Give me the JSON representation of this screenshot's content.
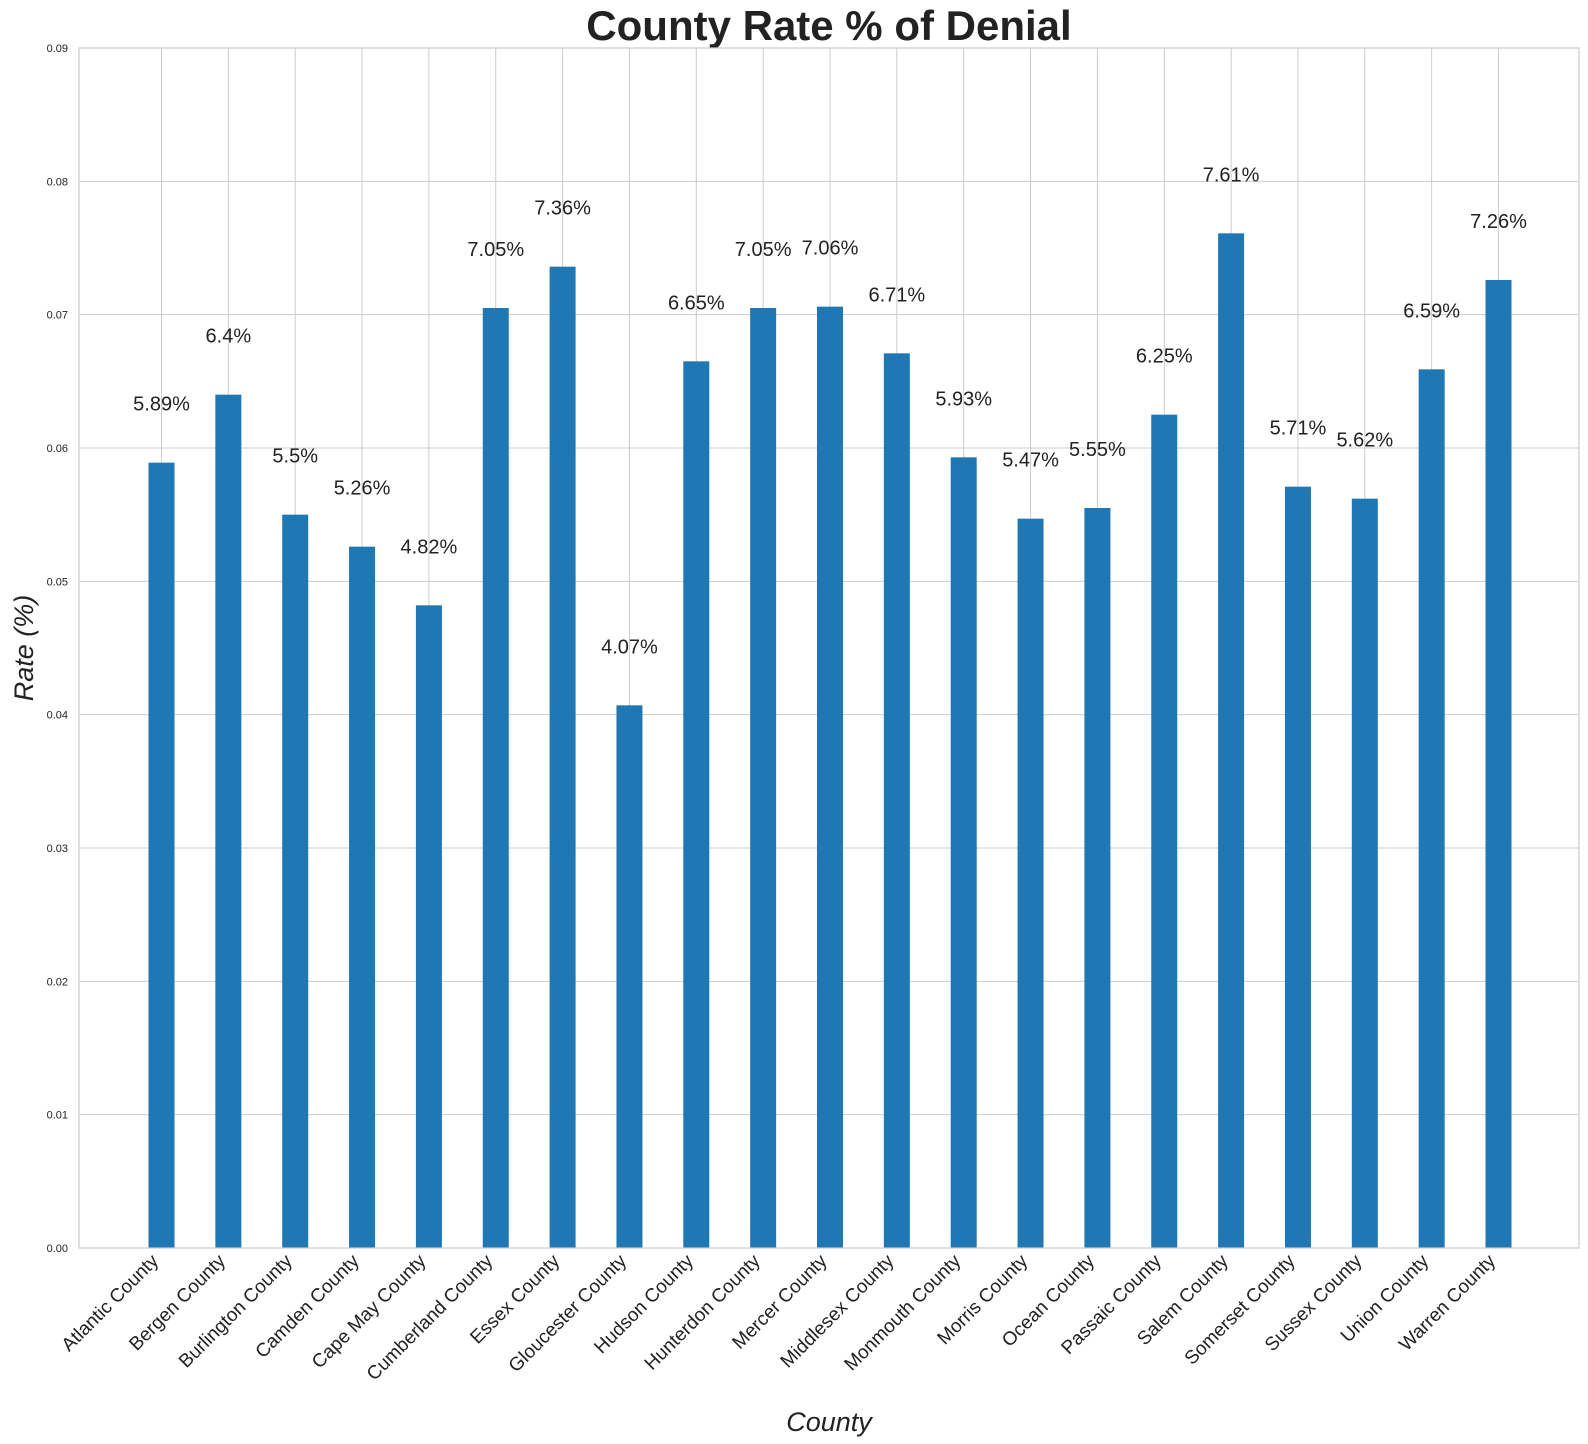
{
  "chart_data": {
    "type": "bar",
    "title": "County Rate % of Denial",
    "xlabel": "County",
    "ylabel": "Rate (%)",
    "ylim": [
      0,
      0.09
    ],
    "yticks": [
      "0.00",
      "0.01",
      "0.02",
      "0.03",
      "0.04",
      "0.05",
      "0.06",
      "0.07",
      "0.08",
      "0.09"
    ],
    "grid": true,
    "categories": [
      "Atlantic County",
      "Bergen County",
      "Burlington County",
      "Camden County",
      "Cape May County",
      "Cumberland County",
      "Essex County",
      "Gloucester County",
      "Hudson County",
      "Hunterdon County",
      "Mercer County",
      "Middlesex County",
      "Monmouth County",
      "Morris County",
      "Ocean County",
      "Passaic County",
      "Salem County",
      "Somerset County",
      "Sussex County",
      "Union County",
      "Warren County"
    ],
    "values": [
      0.0589,
      0.064,
      0.055,
      0.0526,
      0.0482,
      0.0705,
      0.0736,
      0.0407,
      0.0665,
      0.0705,
      0.0706,
      0.0671,
      0.0593,
      0.0547,
      0.0555,
      0.0625,
      0.0761,
      0.0571,
      0.0562,
      0.0659,
      0.0726
    ],
    "data_labels": [
      "5.89%",
      "6.4%",
      "5.5%",
      "5.26%",
      "4.82%",
      "7.05%",
      "7.36%",
      "4.07%",
      "6.65%",
      "7.05%",
      "7.06%",
      "6.71%",
      "5.93%",
      "5.47%",
      "5.55%",
      "6.25%",
      "7.61%",
      "5.71%",
      "5.62%",
      "6.59%",
      "7.26%"
    ],
    "bar_color": "#1f77b4"
  }
}
